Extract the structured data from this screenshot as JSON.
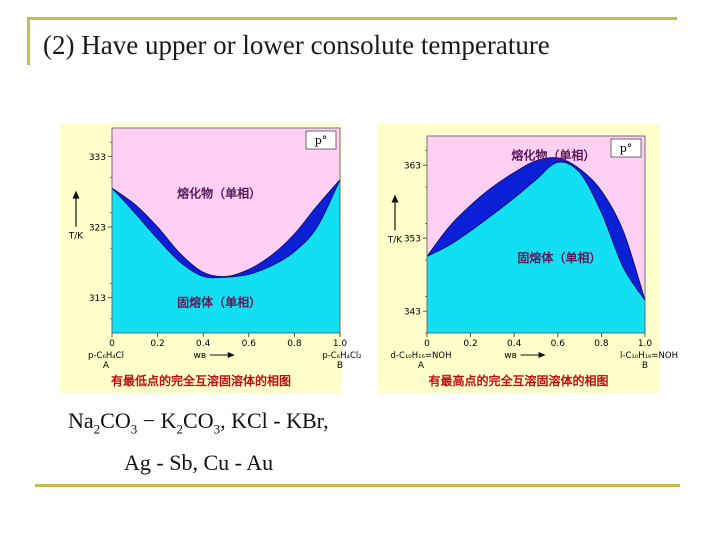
{
  "slide": {
    "title": "(2)  Have upper or lower consolute temperature"
  },
  "examples": {
    "line1": [
      "Na",
      "2",
      "CO",
      "3",
      " − K",
      "2",
      "CO",
      "3",
      ", KCl - KBr,"
    ],
    "line2": "Ag - Sb, Cu - Au"
  },
  "chart_data": [
    {
      "type": "area",
      "title": "",
      "pressure_label": "p°",
      "upper_phase_label": "熔化物（单相）",
      "lower_phase_label": "固熔体（单相）",
      "ylabel": "T/K",
      "xlabel": "wʙ",
      "y_ticks": [
        313,
        323,
        333
      ],
      "ylim": [
        308,
        337
      ],
      "x_ticks": [
        "0",
        "0.2",
        "0.4",
        "0.6",
        "0.8",
        "1.0"
      ],
      "x_tick_values": [
        0,
        0.2,
        0.4,
        0.6,
        0.8,
        1.0
      ],
      "left_component": "p-C₆H₄Cl",
      "left_letter": "A",
      "right_component": "p-C₆H₄Cl₂",
      "right_letter": "B",
      "caption": "有最低点的完全互溶固溶体的相图",
      "series": [
        {
          "name": "liquidus",
          "x": [
            0,
            0.1,
            0.2,
            0.3,
            0.4,
            0.5,
            0.6,
            0.7,
            0.8,
            0.9,
            1.0
          ],
          "y": [
            328.5,
            326.2,
            323.0,
            319.2,
            316.6,
            316.0,
            317.0,
            319.0,
            322.0,
            326.0,
            329.7
          ]
        },
        {
          "name": "solidus",
          "x": [
            0,
            0.1,
            0.2,
            0.3,
            0.4,
            0.5,
            0.6,
            0.7,
            0.8,
            0.9,
            1.0
          ],
          "y": [
            328.5,
            325.0,
            321.3,
            318.0,
            316.0,
            315.9,
            316.3,
            317.5,
            319.5,
            323.0,
            329.7
          ]
        }
      ]
    },
    {
      "type": "area",
      "title": "",
      "pressure_label": "p°",
      "upper_phase_label": "熔化物（单相）",
      "lower_phase_label": "固熔体（单相）",
      "ylabel": "T/K",
      "xlabel": "wʙ",
      "y_ticks": [
        343,
        353,
        363
      ],
      "ylim": [
        340,
        367
      ],
      "x_ticks": [
        "0",
        "0.2",
        "0.4",
        "0.6",
        "0.8",
        "1.0"
      ],
      "x_tick_values": [
        0,
        0.2,
        0.4,
        0.6,
        0.8,
        1.0
      ],
      "left_component": "d-C₁₀H₁₆=NOH",
      "left_letter": "A",
      "right_component": "l-C₁₀H₁₆=NOH",
      "right_letter": "B",
      "caption": "有最高点的完全互溶固溶体的相图",
      "series": [
        {
          "name": "liquidus",
          "x": [
            0,
            0.1,
            0.2,
            0.3,
            0.4,
            0.5,
            0.6,
            0.7,
            0.8,
            0.9,
            1.0
          ],
          "y": [
            350.5,
            354.5,
            357.5,
            360.0,
            362.0,
            363.6,
            364.0,
            362.5,
            359.5,
            354.0,
            344.5
          ]
        },
        {
          "name": "solidus",
          "x": [
            0,
            0.1,
            0.2,
            0.3,
            0.4,
            0.5,
            0.6,
            0.7,
            0.8,
            0.9,
            1.0
          ],
          "y": [
            350.5,
            352.0,
            354.0,
            356.2,
            358.5,
            361.0,
            363.4,
            362.0,
            356.5,
            349.0,
            344.5
          ]
        }
      ]
    }
  ],
  "colors": {
    "melt": "#ffd0f4",
    "solid_solution": "#12e0f2",
    "two_phase": "#0a1fd6",
    "panel_bg": "#ffffcc",
    "frame": "#c9b84a",
    "caption": "#c01010",
    "phase_label": "#5a1a5a"
  }
}
